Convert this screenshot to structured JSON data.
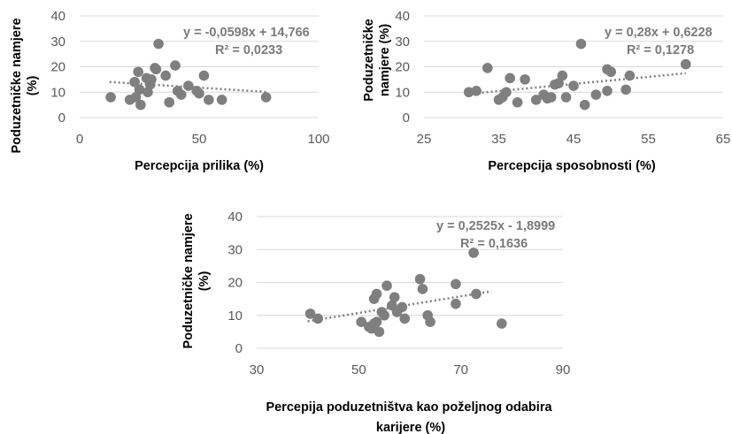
{
  "chart_data": [
    {
      "type": "scatter",
      "xlabel": "Percepcija prilika (%)",
      "ylabel": "Poduzetničke namjere (%)",
      "xlim": [
        0,
        100
      ],
      "ylim": [
        0,
        40
      ],
      "xticks": [
        "0",
        "50",
        "100"
      ],
      "yticks": [
        "0",
        "10",
        "20",
        "30",
        "40"
      ],
      "grid": "horizontal",
      "equation": "y = -0,0598x + 14,766",
      "r2": "R² = 0,0233",
      "trendline": {
        "slope": -0.0598,
        "intercept": 14.766,
        "x_range": [
          12.5,
          78
        ]
      },
      "points": [
        {
          "x": 13,
          "y": 8
        },
        {
          "x": 21,
          "y": 7
        },
        {
          "x": 23,
          "y": 14
        },
        {
          "x": 23.5,
          "y": 8
        },
        {
          "x": 24.5,
          "y": 18
        },
        {
          "x": 25,
          "y": 11
        },
        {
          "x": 25.5,
          "y": 5
        },
        {
          "x": 28,
          "y": 15.5
        },
        {
          "x": 28.5,
          "y": 10
        },
        {
          "x": 29.5,
          "y": 13
        },
        {
          "x": 30,
          "y": 15
        },
        {
          "x": 31.5,
          "y": 19.5
        },
        {
          "x": 32,
          "y": 19
        },
        {
          "x": 33,
          "y": 29
        },
        {
          "x": 36,
          "y": 16.5
        },
        {
          "x": 37.5,
          "y": 6
        },
        {
          "x": 40,
          "y": 20.5
        },
        {
          "x": 41,
          "y": 10.5
        },
        {
          "x": 42.5,
          "y": 9
        },
        {
          "x": 45.5,
          "y": 12.5
        },
        {
          "x": 49,
          "y": 10.5
        },
        {
          "x": 50,
          "y": 9.5
        },
        {
          "x": 52,
          "y": 16.5
        },
        {
          "x": 54,
          "y": 7
        },
        {
          "x": 59.5,
          "y": 7
        },
        {
          "x": 78,
          "y": 8
        }
      ]
    },
    {
      "type": "scatter",
      "xlabel": "Percepcija sposobnosti (%)",
      "ylabel": "Poduzetničke namjere (%)",
      "xlim": [
        25,
        65
      ],
      "ylim": [
        0,
        40
      ],
      "xticks": [
        "25",
        "35",
        "45",
        "55",
        "65"
      ],
      "yticks": [
        "0",
        "10",
        "20",
        "30",
        "40"
      ],
      "grid": "horizontal",
      "equation": "y = 0,28x + 0,6228",
      "r2": "R² = 0,1278",
      "trendline": {
        "slope": 0.28,
        "intercept": 0.6228,
        "x_range": [
          31,
          60
        ]
      },
      "points": [
        {
          "x": 31,
          "y": 10
        },
        {
          "x": 32,
          "y": 10.5
        },
        {
          "x": 33.5,
          "y": 19.5
        },
        {
          "x": 35,
          "y": 7
        },
        {
          "x": 35.5,
          "y": 8
        },
        {
          "x": 36,
          "y": 10
        },
        {
          "x": 36.5,
          "y": 15.5
        },
        {
          "x": 37.5,
          "y": 6
        },
        {
          "x": 38.5,
          "y": 15
        },
        {
          "x": 40,
          "y": 7
        },
        {
          "x": 41,
          "y": 9
        },
        {
          "x": 41.5,
          "y": 7.5
        },
        {
          "x": 42,
          "y": 8
        },
        {
          "x": 42.5,
          "y": 13
        },
        {
          "x": 43,
          "y": 13.5
        },
        {
          "x": 43.5,
          "y": 16.5
        },
        {
          "x": 44,
          "y": 8
        },
        {
          "x": 45,
          "y": 12.5
        },
        {
          "x": 46,
          "y": 29
        },
        {
          "x": 46.5,
          "y": 5
        },
        {
          "x": 48,
          "y": 9
        },
        {
          "x": 49.5,
          "y": 10.5
        },
        {
          "x": 49.5,
          "y": 19
        },
        {
          "x": 50,
          "y": 18
        },
        {
          "x": 52,
          "y": 11
        },
        {
          "x": 52.5,
          "y": 16.5
        },
        {
          "x": 60,
          "y": 21
        }
      ]
    },
    {
      "type": "scatter",
      "xlabel": "Percepija poduzetništva kao poželjnog odabira karijere (%)",
      "ylabel": "Poduzetničke namjere (%)",
      "xlim": [
        30,
        90
      ],
      "ylim": [
        0,
        40
      ],
      "xticks": [
        "30",
        "50",
        "70",
        "90"
      ],
      "yticks": [
        "0",
        "10",
        "20",
        "30",
        "40"
      ],
      "grid": "horizontal",
      "equation": "y = 0,2525x - 1,8999",
      "r2": "R² = 0,1636",
      "trendline": {
        "slope": 0.2525,
        "intercept": -1.8999,
        "x_range": [
          40,
          76
        ]
      },
      "points": [
        {
          "x": 40.5,
          "y": 10.5
        },
        {
          "x": 42,
          "y": 9
        },
        {
          "x": 50.5,
          "y": 8
        },
        {
          "x": 52,
          "y": 6.5
        },
        {
          "x": 52.5,
          "y": 6
        },
        {
          "x": 53,
          "y": 15
        },
        {
          "x": 53,
          "y": 7.5
        },
        {
          "x": 53.5,
          "y": 16.5
        },
        {
          "x": 53.5,
          "y": 8
        },
        {
          "x": 54,
          "y": 5
        },
        {
          "x": 54.5,
          "y": 11
        },
        {
          "x": 55,
          "y": 10
        },
        {
          "x": 55.5,
          "y": 19
        },
        {
          "x": 56.5,
          "y": 13
        },
        {
          "x": 57,
          "y": 15.5
        },
        {
          "x": 57.5,
          "y": 11
        },
        {
          "x": 58.5,
          "y": 12.5
        },
        {
          "x": 59,
          "y": 9
        },
        {
          "x": 62,
          "y": 21
        },
        {
          "x": 62.5,
          "y": 18
        },
        {
          "x": 63.5,
          "y": 10
        },
        {
          "x": 64,
          "y": 8
        },
        {
          "x": 69,
          "y": 19.5
        },
        {
          "x": 69,
          "y": 13.5
        },
        {
          "x": 72.5,
          "y": 29
        },
        {
          "x": 73,
          "y": 16.5
        },
        {
          "x": 78,
          "y": 7.5
        }
      ]
    }
  ]
}
